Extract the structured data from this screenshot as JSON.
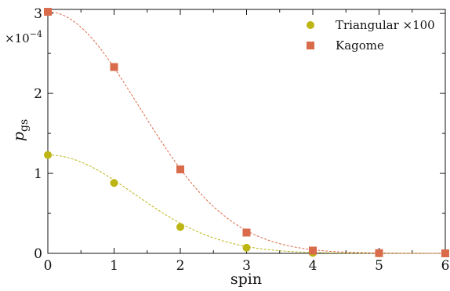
{
  "chart_data": {
    "type": "scatter",
    "xlabel": "spin",
    "ylabel": "p_gs",
    "ylabel_main": "p",
    "ylabel_sub": "gs",
    "y_multiplier": "×10",
    "y_multiplier_exp": "−4",
    "xlim": [
      0,
      6
    ],
    "ylim": [
      0,
      3.05
    ],
    "x_ticks": [
      0,
      1,
      2,
      3,
      4,
      5,
      6
    ],
    "y_ticks": [
      0,
      1,
      2,
      3
    ],
    "x_tick_labels": [
      "0",
      "1",
      "2",
      "3",
      "4",
      "5",
      "6"
    ],
    "y_tick_labels": [
      "0",
      "1",
      "2",
      "3"
    ],
    "legend_position": "top-right",
    "series": [
      {
        "name": "Triangular ×100",
        "marker": "circle",
        "color": "#bcb514",
        "x": [
          0,
          1,
          2,
          3,
          4,
          5,
          6
        ],
        "y": [
          1.23,
          0.88,
          0.33,
          0.07,
          0.005,
          0.0,
          0.0
        ],
        "fit": "gaussian",
        "fit_params": {
          "amplitude": 1.23,
          "sigma": 1.3
        }
      },
      {
        "name": "Kagome",
        "marker": "square",
        "color": "#d96a4a",
        "x": [
          0,
          1,
          2,
          3,
          4,
          5,
          6
        ],
        "y": [
          3.02,
          2.33,
          1.05,
          0.26,
          0.035,
          0.003,
          0.0
        ],
        "fit": "gaussian",
        "fit_params": {
          "amplitude": 3.02,
          "sigma": 1.38
        }
      }
    ]
  }
}
